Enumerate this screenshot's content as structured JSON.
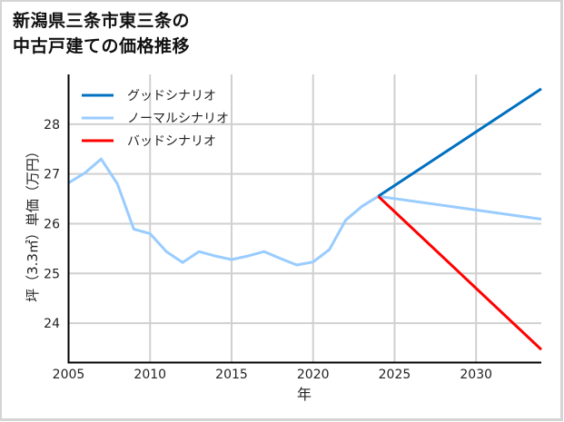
{
  "title": {
    "line1": "新潟県三条市東三条の",
    "line2": "中古戸建ての価格推移"
  },
  "chart_data": {
    "type": "line",
    "title": "新潟県三条市東三条の中古戸建ての価格推移",
    "xlabel": "年",
    "ylabel": "坪（3.3㎡）単価（万円）",
    "xlim": [
      2005,
      2034
    ],
    "ylim": [
      23.2,
      29.0
    ],
    "xticks": [
      2005,
      2010,
      2015,
      2020,
      2025,
      2030
    ],
    "yticks": [
      24,
      25,
      26,
      27,
      28
    ],
    "grid": true,
    "legend_position": "upper left",
    "series": [
      {
        "name": "グッドシナリオ",
        "color": "#0070c0",
        "x": [
          2024,
          2034
        ],
        "values": [
          26.55,
          28.71
        ]
      },
      {
        "name": "ノーマルシナリオ",
        "color": "#99ccff",
        "x": [
          2005,
          2006,
          2007,
          2008,
          2009,
          2010,
          2011,
          2012,
          2013,
          2014,
          2015,
          2016,
          2017,
          2018,
          2019,
          2020,
          2021,
          2022,
          2023,
          2024,
          2034
        ],
        "values": [
          26.82,
          27.02,
          27.3,
          26.8,
          25.89,
          25.8,
          25.44,
          25.22,
          25.44,
          25.35,
          25.28,
          25.35,
          25.44,
          25.3,
          25.17,
          25.23,
          25.48,
          26.07,
          26.35,
          26.55,
          26.09
        ]
      },
      {
        "name": "バッドシナリオ",
        "color": "#ff0000",
        "x": [
          2024,
          2034
        ],
        "values": [
          26.55,
          23.47
        ]
      }
    ]
  }
}
